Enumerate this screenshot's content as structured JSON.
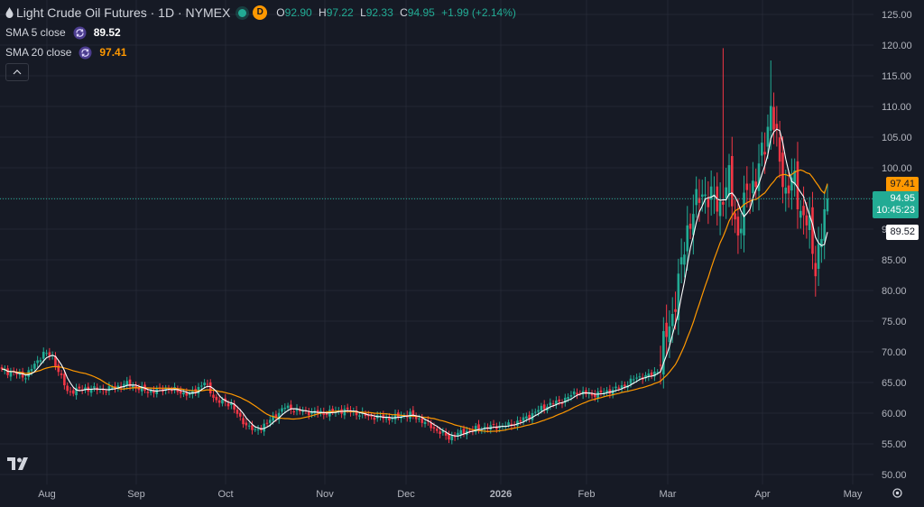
{
  "legend": {
    "symbol_title": "Light Crude Oil Futures · 1D · NYMEX",
    "interval_badge": "D",
    "open_label": "O",
    "open_value": "92.90",
    "high_label": "H",
    "high_value": "97.22",
    "low_label": "L",
    "low_value": "92.33",
    "close_label": "C",
    "close_value": "94.95",
    "change": "+1.99 (+2.14%)",
    "indicators": [
      {
        "name": "SMA 5 close",
        "value": "89.52",
        "color": "#ffffff"
      },
      {
        "name": "SMA 20 close",
        "value": "97.41",
        "color": "#ff9800"
      }
    ]
  },
  "price_tags": {
    "sma20": "97.41",
    "last_price": "94.95",
    "countdown": "10:45:23",
    "sma5": "89.52"
  },
  "colors": {
    "background": "#161a25",
    "up": "#22ab94",
    "down": "#f23645",
    "sma5": "#ffffff",
    "sma20": "#ff9800",
    "grid": "#232733"
  },
  "chart_data": {
    "type": "candlestick",
    "title": "Light Crude Oil Futures · 1D · NYMEX",
    "y_ticks": [
      "125.00",
      "120.00",
      "115.00",
      "110.00",
      "105.00",
      "100.00",
      "95.00",
      "90.00",
      "85.00",
      "80.00",
      "75.00",
      "70.00",
      "65.00",
      "60.00",
      "55.00",
      "50.00"
    ],
    "ylim": [
      48,
      126
    ],
    "x_ticks": [
      "Aug",
      "Sep",
      "Oct",
      "Nov",
      "Dec",
      "2026",
      "Feb",
      "Mar",
      "Apr",
      "May"
    ],
    "grid": true,
    "last_price": 94.95,
    "ohlc_last": {
      "open": 92.9,
      "high": 97.22,
      "low": 92.33,
      "close": 94.95
    },
    "anchors_close": [
      [
        0,
        67.0
      ],
      [
        8,
        66.0
      ],
      [
        14,
        69.8
      ],
      [
        17,
        69.2
      ],
      [
        22,
        63.5
      ],
      [
        28,
        64.0
      ],
      [
        35,
        63.8
      ],
      [
        42,
        64.8
      ],
      [
        49,
        63.5
      ],
      [
        56,
        64.0
      ],
      [
        63,
        63.0
      ],
      [
        68,
        65.0
      ],
      [
        72,
        62.0
      ],
      [
        77,
        61.5
      ],
      [
        80,
        59.0
      ],
      [
        85,
        57.0
      ],
      [
        90,
        58.8
      ],
      [
        95,
        61.0
      ],
      [
        100,
        60.3
      ],
      [
        108,
        60.0
      ],
      [
        115,
        60.5
      ],
      [
        123,
        59.5
      ],
      [
        130,
        59.2
      ],
      [
        137,
        59.8
      ],
      [
        142,
        58.5
      ],
      [
        145,
        57.5
      ],
      [
        150,
        56.0
      ],
      [
        155,
        57.0
      ],
      [
        160,
        57.5
      ],
      [
        165,
        57.8
      ],
      [
        170,
        58.0
      ],
      [
        175,
        59.0
      ],
      [
        180,
        60.5
      ],
      [
        183,
        61.3
      ],
      [
        188,
        62.0
      ],
      [
        193,
        63.5
      ],
      [
        198,
        63.0
      ],
      [
        203,
        63.5
      ],
      [
        208,
        64.3
      ],
      [
        213,
        65.8
      ],
      [
        218,
        66.2
      ],
      [
        220,
        67.0
      ],
      [
        222,
        71.0
      ],
      [
        225,
        76.0
      ],
      [
        228,
        84.0
      ],
      [
        230,
        90.0
      ],
      [
        232,
        93.0
      ],
      [
        235,
        96.0
      ],
      [
        238,
        95.0
      ],
      [
        241,
        94.0
      ],
      [
        244,
        98.0
      ],
      [
        247,
        89.0
      ],
      [
        250,
        96.0
      ],
      [
        253,
        98.0
      ],
      [
        256,
        104.0
      ],
      [
        258,
        110.0
      ],
      [
        260,
        104.0
      ],
      [
        263,
        96.0
      ],
      [
        266,
        98.0
      ],
      [
        268,
        93.0
      ],
      [
        271,
        90.0
      ],
      [
        273,
        84.0
      ],
      [
        275,
        89.0
      ],
      [
        277,
        94.95
      ]
    ],
    "sma5_last": 89.52,
    "sma20_last": 97.41
  }
}
